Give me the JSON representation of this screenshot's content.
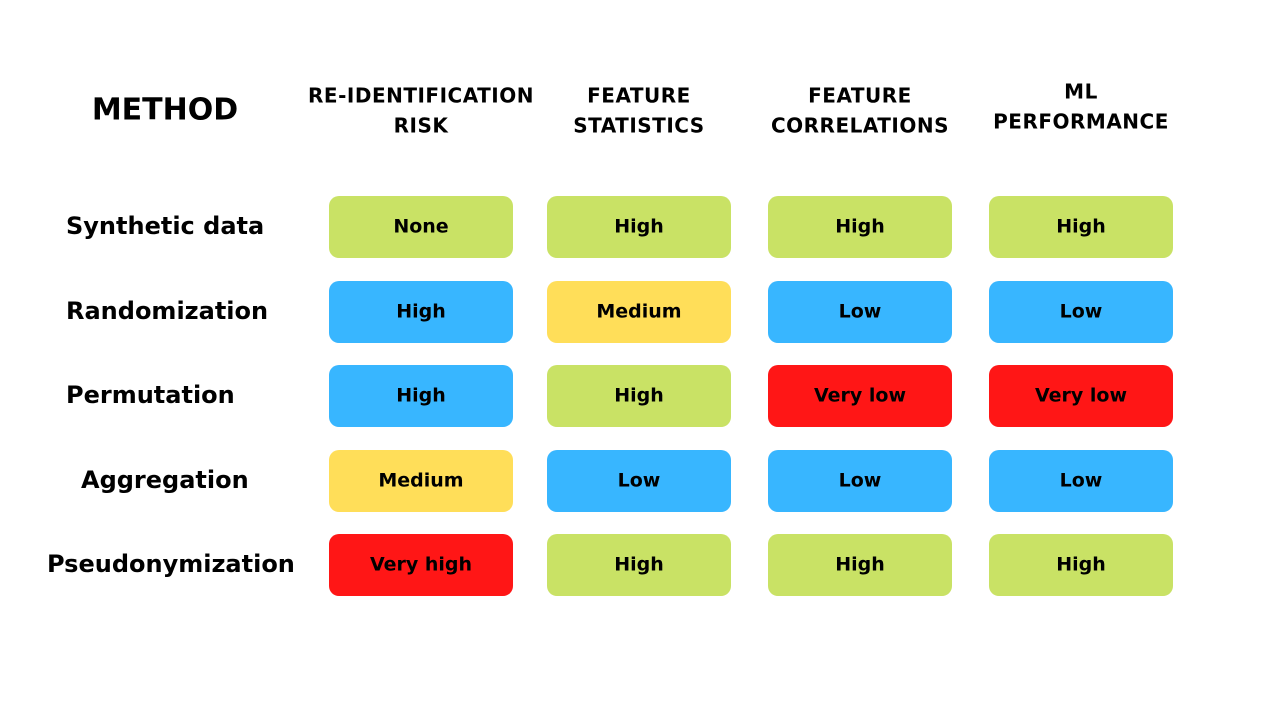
{
  "header": {
    "method": "METHOD",
    "columns": [
      [
        "RE-IDENTIFICATION",
        "RISK"
      ],
      [
        "FEATURE",
        "STATISTICS"
      ],
      [
        "FEATURE",
        "CORRELATIONS"
      ],
      [
        "ML",
        "PERFORMANCE"
      ]
    ]
  },
  "table": {
    "rows": [
      {
        "method": "Synthetic data",
        "cells": [
          {
            "label": "None",
            "color": "#c9e265"
          },
          {
            "label": "High",
            "color": "#c9e265"
          },
          {
            "label": "High",
            "color": "#c9e265"
          },
          {
            "label": "High",
            "color": "#c9e265"
          }
        ]
      },
      {
        "method": "Randomization",
        "cells": [
          {
            "label": "High",
            "color": "#38b6ff"
          },
          {
            "label": "Medium",
            "color": "#ffde59"
          },
          {
            "label": "Low",
            "color": "#38b6ff"
          },
          {
            "label": "Low",
            "color": "#38b6ff"
          }
        ]
      },
      {
        "method": "Permutation",
        "cells": [
          {
            "label": "High",
            "color": "#38b6ff"
          },
          {
            "label": "High",
            "color": "#c9e265"
          },
          {
            "label": "Very low",
            "color": "#ff1616"
          },
          {
            "label": "Very low",
            "color": "#ff1616"
          }
        ]
      },
      {
        "method": "Aggregation",
        "cells": [
          {
            "label": "Medium",
            "color": "#ffde59"
          },
          {
            "label": "Low",
            "color": "#38b6ff"
          },
          {
            "label": "Low",
            "color": "#38b6ff"
          },
          {
            "label": "Low",
            "color": "#38b6ff"
          }
        ]
      },
      {
        "method": "Pseudonymization",
        "cells": [
          {
            "label": "Very high",
            "color": "#ff1616"
          },
          {
            "label": "High",
            "color": "#c9e265"
          },
          {
            "label": "High",
            "color": "#c9e265"
          },
          {
            "label": "High",
            "color": "#c9e265"
          }
        ]
      }
    ]
  }
}
